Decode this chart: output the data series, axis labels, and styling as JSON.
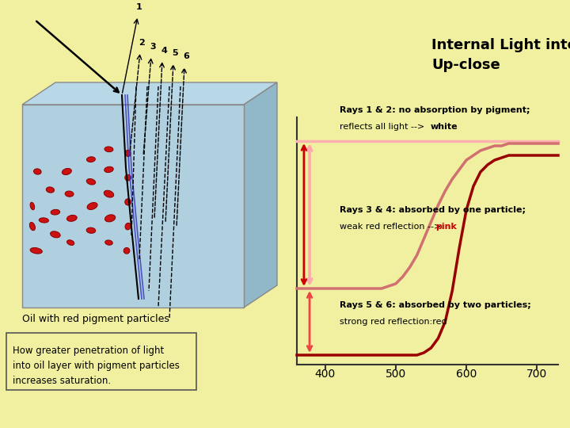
{
  "bg_color": "#f0f0a0",
  "title": "Internal Light interactions,\nUp-close",
  "wavelengths": [
    360,
    370,
    380,
    390,
    400,
    410,
    420,
    430,
    440,
    450,
    460,
    470,
    480,
    490,
    500,
    510,
    520,
    530,
    540,
    550,
    560,
    570,
    580,
    590,
    600,
    610,
    620,
    630,
    640,
    650,
    660,
    670,
    680,
    690,
    700,
    710,
    720,
    730
  ],
  "white_curve": [
    0.92,
    0.92,
    0.92,
    0.92,
    0.92,
    0.92,
    0.92,
    0.92,
    0.92,
    0.92,
    0.92,
    0.92,
    0.92,
    0.92,
    0.92,
    0.92,
    0.92,
    0.92,
    0.92,
    0.92,
    0.92,
    0.92,
    0.92,
    0.92,
    0.92,
    0.92,
    0.92,
    0.92,
    0.92,
    0.92,
    0.92,
    0.92,
    0.92,
    0.92,
    0.92,
    0.92,
    0.92,
    0.92
  ],
  "pink_curve": [
    0.3,
    0.3,
    0.3,
    0.3,
    0.3,
    0.3,
    0.3,
    0.3,
    0.3,
    0.3,
    0.3,
    0.3,
    0.3,
    0.31,
    0.32,
    0.35,
    0.39,
    0.44,
    0.51,
    0.58,
    0.65,
    0.71,
    0.76,
    0.8,
    0.84,
    0.86,
    0.88,
    0.89,
    0.9,
    0.9,
    0.91,
    0.91,
    0.91,
    0.91,
    0.91,
    0.91,
    0.91,
    0.91
  ],
  "red_curve": [
    0.02,
    0.02,
    0.02,
    0.02,
    0.02,
    0.02,
    0.02,
    0.02,
    0.02,
    0.02,
    0.02,
    0.02,
    0.02,
    0.02,
    0.02,
    0.02,
    0.02,
    0.02,
    0.03,
    0.05,
    0.09,
    0.16,
    0.29,
    0.47,
    0.63,
    0.73,
    0.79,
    0.82,
    0.84,
    0.85,
    0.86,
    0.86,
    0.86,
    0.86,
    0.86,
    0.86,
    0.86,
    0.86
  ],
  "white_curve_color": "#ffb0b0",
  "pink_curve_color": "#d07070",
  "red_curve_color": "#990000",
  "oil_label": "Oil with red pigment particles",
  "how_label": "How greater penetration of light\ninto oil layer with pigment particles\nincreases saturation.",
  "particles": [
    [
      0.055,
      0.72,
      0.048,
      0.028,
      10
    ],
    [
      0.04,
      0.6,
      0.02,
      0.042,
      -20
    ],
    [
      0.04,
      0.5,
      0.016,
      0.038,
      -15
    ],
    [
      0.085,
      0.57,
      0.038,
      0.024,
      5
    ],
    [
      0.13,
      0.64,
      0.04,
      0.03,
      15
    ],
    [
      0.13,
      0.53,
      0.036,
      0.026,
      -5
    ],
    [
      0.11,
      0.42,
      0.032,
      0.028,
      10
    ],
    [
      0.19,
      0.68,
      0.03,
      0.024,
      20
    ],
    [
      0.195,
      0.56,
      0.04,
      0.03,
      -10
    ],
    [
      0.185,
      0.44,
      0.034,
      0.028,
      5
    ],
    [
      0.175,
      0.33,
      0.038,
      0.03,
      -15
    ],
    [
      0.06,
      0.33,
      0.03,
      0.028,
      10
    ],
    [
      0.27,
      0.62,
      0.036,
      0.028,
      5
    ],
    [
      0.275,
      0.5,
      0.042,
      0.032,
      -20
    ],
    [
      0.27,
      0.38,
      0.036,
      0.028,
      15
    ],
    [
      0.27,
      0.27,
      0.034,
      0.026,
      -5
    ],
    [
      0.34,
      0.68,
      0.03,
      0.024,
      10
    ],
    [
      0.345,
      0.56,
      0.042,
      0.034,
      -15
    ],
    [
      0.34,
      0.44,
      0.04,
      0.032,
      20
    ],
    [
      0.34,
      0.32,
      0.036,
      0.028,
      -10
    ],
    [
      0.34,
      0.22,
      0.034,
      0.026,
      5
    ],
    [
      0.41,
      0.72,
      0.024,
      0.03,
      -20
    ],
    [
      0.415,
      0.6,
      0.022,
      0.034,
      15
    ],
    [
      0.415,
      0.48,
      0.024,
      0.032,
      -5
    ],
    [
      0.415,
      0.36,
      0.024,
      0.03,
      10
    ],
    [
      0.415,
      0.24,
      0.022,
      0.032,
      -15
    ]
  ]
}
